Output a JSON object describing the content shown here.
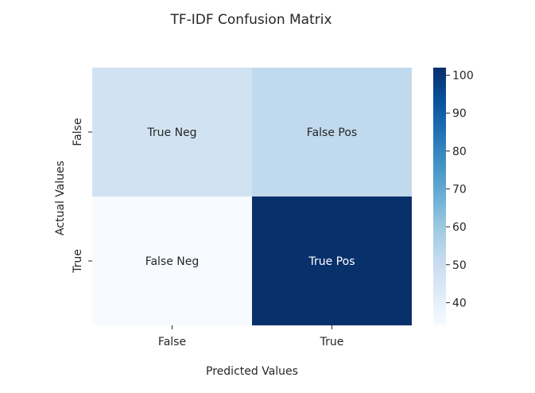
{
  "chart_data": {
    "type": "heatmap",
    "title": "TF-IDF Confusion Matrix",
    "xlabel": "Predicted Values",
    "ylabel": "Actual Values",
    "x_categories": [
      "False",
      "True"
    ],
    "y_categories": [
      "False",
      "True"
    ],
    "values": [
      [
        47,
        52
      ],
      [
        34,
        102
      ]
    ],
    "cell_labels": [
      [
        "True Neg",
        "False Pos"
      ],
      [
        "False Neg",
        "True Pos"
      ]
    ],
    "colormap": "Blues",
    "colorbar": {
      "range": [
        34,
        102
      ],
      "ticks": [
        40,
        50,
        60,
        70,
        80,
        90,
        100
      ]
    },
    "grid": false
  }
}
